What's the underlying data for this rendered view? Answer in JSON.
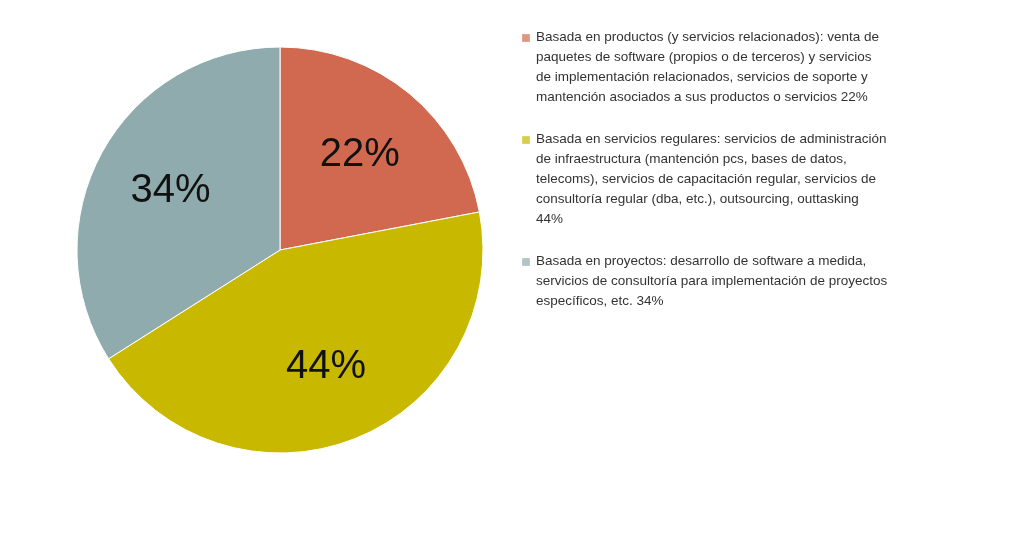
{
  "chart_data": {
    "type": "pie",
    "categories": [
      "Basada en productos (y servicios relacionados): venta de paquetes de software (propios o de terceros) y servicios de implementación relacionados, servicios de soporte y mantención asociados a sus productos o servicios 22%",
      "Basada en servicios regulares: servicios de administración de infraestructura (mantención pcs, bases de datos, telecoms), servicios de capacitación regular, servicios de consultoría regular (dba, etc.), outsourcing, outtasking 44%",
      "Basada en proyectos: desarrollo de software a medida, servicios de consultoría para implementación de proyectos específicos, etc. 34%"
    ],
    "values": [
      22,
      44,
      34
    ],
    "colors": [
      "#d0694f",
      "#c9b800",
      "#8fabad"
    ],
    "value_labels": [
      "22%",
      "44%",
      "34%"
    ],
    "legend": "right"
  }
}
